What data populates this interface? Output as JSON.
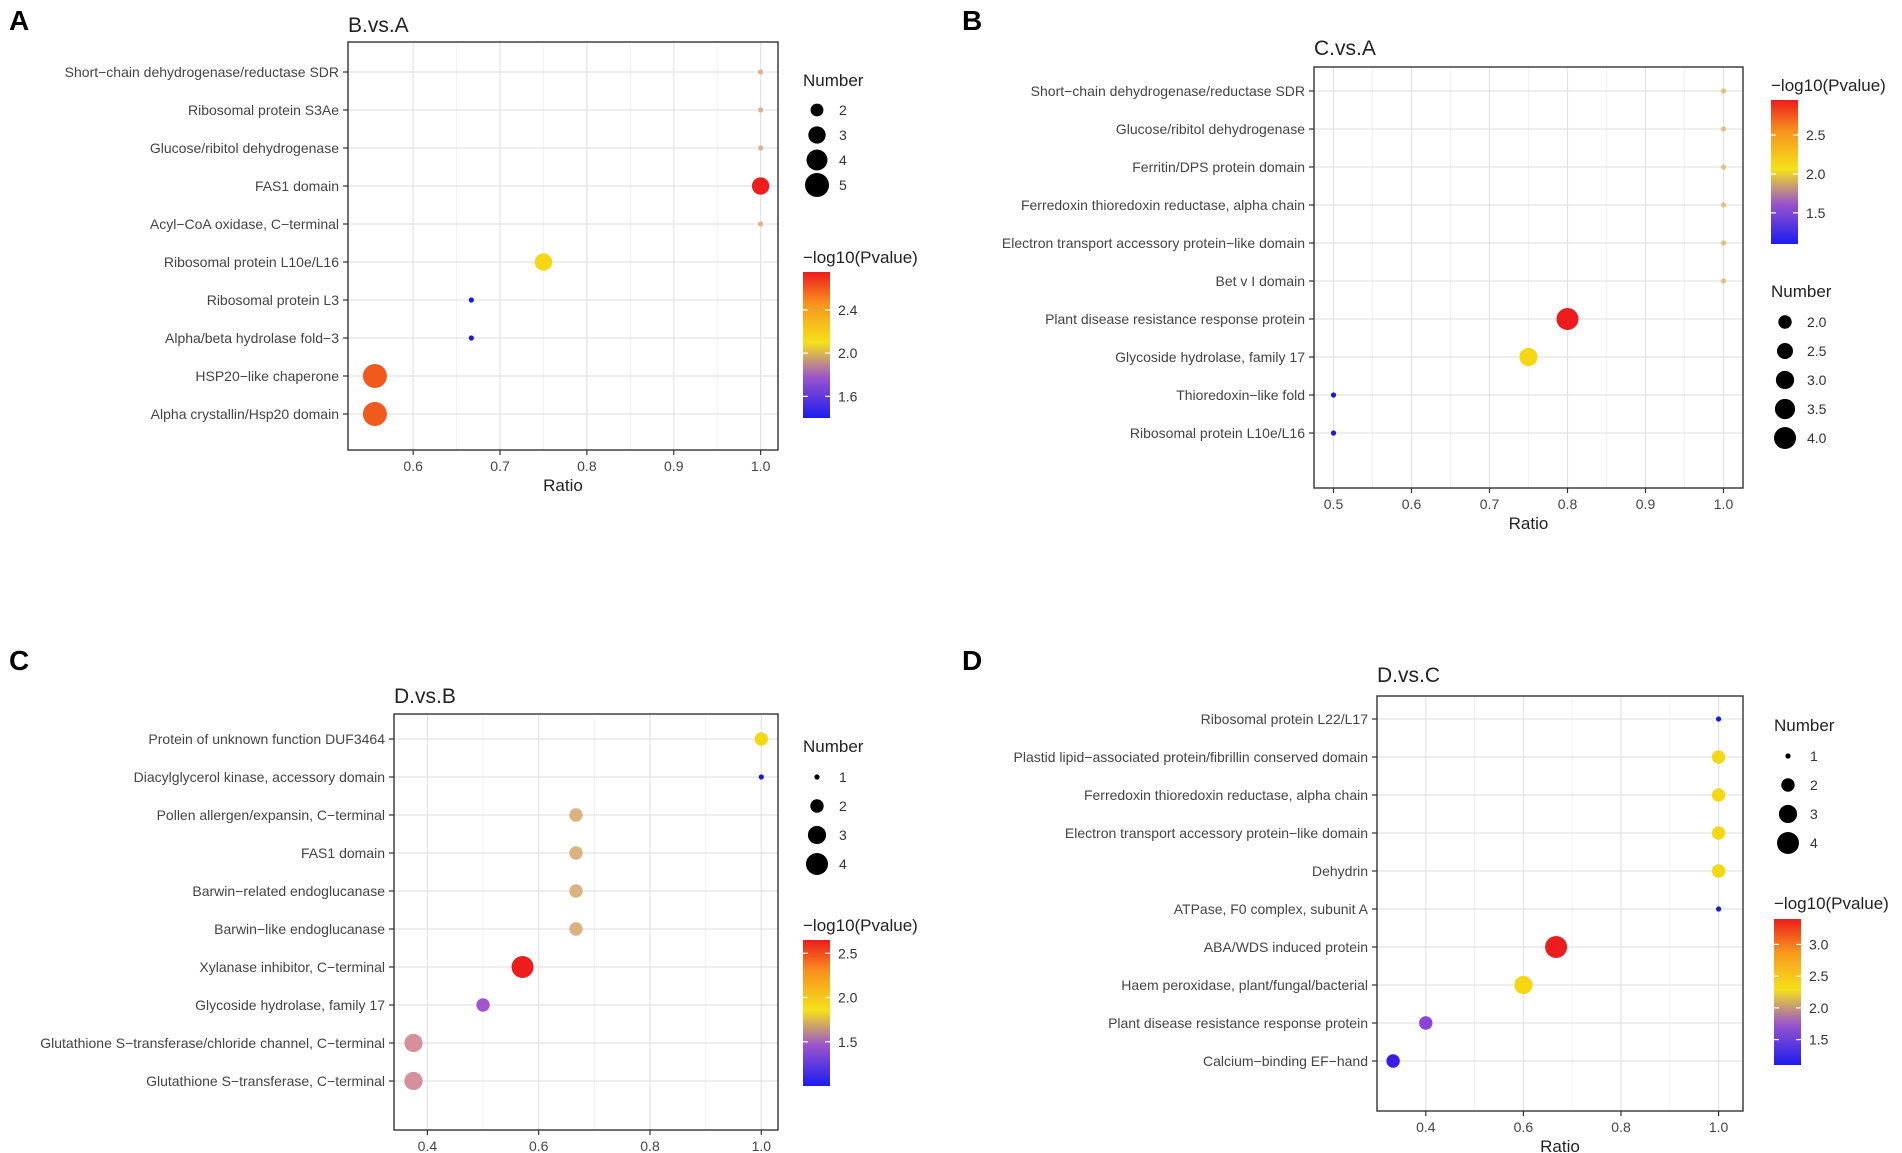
{
  "chart_data": [
    {
      "panel": "A",
      "type": "scatter",
      "title": "B.vs.A",
      "xlabel": "Ratio",
      "xlim": [
        0.525,
        1.02
      ],
      "xticks": [
        0.6,
        0.7,
        0.8,
        0.9,
        1.0
      ],
      "xtick_labels": [
        "0.6",
        "0.7",
        "0.8",
        "0.9",
        "1.0"
      ],
      "categories": [
        "Short−chain dehydrogenase/reductase SDR",
        "Ribosomal protein S3Ae",
        "Glucose/ribitol dehydrogenase",
        "FAS1 domain",
        "Acyl−CoA oxidase, C−terminal",
        "Ribosomal protein L10e/L16",
        "Ribosomal protein L3",
        "Alpha/beta hydrolase fold−3",
        "HSP20−like chaperone",
        "Alpha crystallin/Hsp20 domain"
      ],
      "ratio": [
        1.0,
        1.0,
        1.0,
        1.0,
        1.0,
        0.75,
        0.667,
        0.667,
        0.556,
        0.556
      ],
      "number": [
        1,
        1,
        1,
        3,
        1,
        3,
        1,
        1,
        5,
        5
      ],
      "neglog10p": [
        2.2,
        2.2,
        2.2,
        2.7,
        2.2,
        2.05,
        1.42,
        1.42,
        2.6,
        2.6
      ],
      "colors": [
        "#d9b392",
        "#d9b392",
        "#d9b392",
        "#ee1c1c",
        "#d9b392",
        "#f5d812",
        "#1a1ad9",
        "#1a1ad9",
        "#f05a1c",
        "#f05a1c"
      ],
      "size_legend": {
        "title": "Number",
        "values": [
          2,
          3,
          4,
          5
        ],
        "labels": [
          "2",
          "3",
          "4",
          "5"
        ]
      },
      "color_legend": {
        "title": "−log10(Pvalue)",
        "range": [
          1.4,
          2.75
        ],
        "ticks": [
          1.6,
          2.0,
          2.4
        ],
        "tick_labels": [
          "1.6",
          "2.0",
          "2.4"
        ],
        "position": "right-bottom"
      }
    },
    {
      "panel": "B",
      "type": "scatter",
      "title": "C.vs.A",
      "xlabel": "Ratio",
      "xlim": [
        0.475,
        1.025
      ],
      "xticks": [
        0.5,
        0.6,
        0.7,
        0.8,
        0.9,
        1.0
      ],
      "xtick_labels": [
        "0.5",
        "0.6",
        "0.7",
        "0.8",
        "0.9",
        "1.0"
      ],
      "categories": [
        "Short−chain dehydrogenase/reductase SDR",
        "Glucose/ribitol dehydrogenase",
        "Ferritin/DPS protein domain",
        "Ferredoxin thioredoxin reductase, alpha chain",
        "Electron transport accessory protein−like domain",
        "Bet v I domain",
        "Plant disease resistance response protein",
        "Glycoside hydrolase, family 17",
        "Thioredoxin−like fold",
        "Ribosomal protein L10e/L16"
      ],
      "ratio": [
        1.0,
        1.0,
        1.0,
        1.0,
        1.0,
        1.0,
        0.8,
        0.75,
        0.5,
        0.5
      ],
      "number": [
        1,
        1,
        1,
        1,
        1,
        1,
        4,
        3,
        1,
        1
      ],
      "neglog10p": [
        2.2,
        2.2,
        2.2,
        2.2,
        2.2,
        2.2,
        2.9,
        2.3,
        1.1,
        1.1
      ],
      "colors": [
        "#e6bf7f",
        "#e6bf7f",
        "#e6bf7f",
        "#e6bf7f",
        "#e6bf7f",
        "#e6bf7f",
        "#ee1c1c",
        "#f5d812",
        "#1a1ad9",
        "#1a1ad9"
      ],
      "color_legend": {
        "title": "−log10(Pvalue)",
        "range": [
          1.1,
          2.95
        ],
        "ticks": [
          1.5,
          2.0,
          2.5
        ],
        "tick_labels": [
          "1.5",
          "2.0",
          "2.5"
        ],
        "position": "right-top"
      },
      "size_legend": {
        "title": "Number",
        "values": [
          2.0,
          2.5,
          3.0,
          3.5,
          4.0
        ],
        "labels": [
          "2.0",
          "2.5",
          "3.0",
          "3.5",
          "4.0"
        ]
      }
    },
    {
      "panel": "C",
      "type": "scatter",
      "title": "D.vs.B",
      "xlabel": "Ratio",
      "xlim": [
        0.34,
        1.03
      ],
      "xticks": [
        0.4,
        0.6,
        0.8,
        1.0
      ],
      "xtick_labels": [
        "0.4",
        "0.6",
        "0.8",
        "1.0"
      ],
      "categories": [
        "Protein of unknown function DUF3464",
        "Diacylglycerol kinase, accessory domain",
        "Pollen allergen/expansin, C−terminal",
        "FAS1 domain",
        "Barwin−related endoglucanase",
        "Barwin−like endoglucanase",
        "Xylanase inhibitor, C−terminal",
        "Glycoside hydrolase, family 17",
        "Glutathione S−transferase/chloride channel, C−terminal",
        "Glutathione S−transferase, C−terminal"
      ],
      "ratio": [
        1.0,
        1.0,
        0.667,
        0.667,
        0.667,
        0.667,
        0.571,
        0.5,
        0.375,
        0.375
      ],
      "number": [
        2,
        1,
        2,
        2,
        2,
        2,
        4,
        2,
        3,
        3
      ],
      "neglog10p": [
        2.2,
        1.1,
        1.8,
        1.8,
        1.8,
        1.8,
        2.6,
        1.5,
        1.7,
        1.7
      ],
      "colors": [
        "#f5d812",
        "#1a1ad9",
        "#dbb281",
        "#dbb281",
        "#dbb281",
        "#dbb281",
        "#ee1c1c",
        "#a055cc",
        "#d4919c",
        "#d4919c"
      ],
      "size_legend": {
        "title": "Number",
        "values": [
          1,
          2,
          3,
          4
        ],
        "labels": [
          "1",
          "2",
          "3",
          "4"
        ]
      },
      "color_legend": {
        "title": "−log10(Pvalue)",
        "range": [
          1.0,
          2.65
        ],
        "ticks": [
          1.5,
          2.0,
          2.5
        ],
        "tick_labels": [
          "1.5",
          "2.0",
          "2.5"
        ],
        "position": "right-bottom"
      }
    },
    {
      "panel": "D",
      "type": "scatter",
      "title": "D.vs.C",
      "xlabel": "Ratio",
      "xlim": [
        0.3,
        1.05
      ],
      "xticks": [
        0.4,
        0.6,
        0.8,
        1.0
      ],
      "xtick_labels": [
        "0.4",
        "0.6",
        "0.8",
        "1.0"
      ],
      "categories": [
        "Ribosomal protein L22/L17",
        "Plastid lipid−associated protein/fibrillin conserved domain",
        "Ferredoxin thioredoxin reductase, alpha chain",
        "Electron transport accessory protein−like domain",
        "Dehydrin",
        "ATPase, F0 complex, subunit A",
        "ABA/WDS induced protein",
        "Haem peroxidase, plant/fungal/bacterial",
        "Plant disease resistance response protein",
        "Calcium−binding EF−hand"
      ],
      "ratio": [
        1.0,
        1.0,
        1.0,
        1.0,
        1.0,
        1.0,
        0.667,
        0.6,
        0.4,
        0.333
      ],
      "number": [
        1,
        2,
        2,
        2,
        2,
        1,
        4,
        3,
        2,
        2
      ],
      "neglog10p": [
        1.1,
        2.1,
        2.1,
        2.1,
        2.1,
        1.1,
        3.3,
        2.1,
        1.4,
        1.1
      ],
      "colors": [
        "#1a1ad9",
        "#f5d812",
        "#f5d812",
        "#f5d812",
        "#f5d812",
        "#1a1ad9",
        "#ee1c1c",
        "#f5d812",
        "#8a44d9",
        "#3a1ae6"
      ],
      "size_legend": {
        "title": "Number",
        "values": [
          1,
          2,
          3,
          4
        ],
        "labels": [
          "1",
          "2",
          "3",
          "4"
        ]
      },
      "color_legend": {
        "title": "−log10(Pvalue)",
        "range": [
          1.1,
          3.4
        ],
        "ticks": [
          1.5,
          2.0,
          2.5,
          3.0
        ],
        "tick_labels": [
          "1.5",
          "2.0",
          "2.5",
          "3.0"
        ],
        "position": "right-bottom"
      }
    }
  ]
}
